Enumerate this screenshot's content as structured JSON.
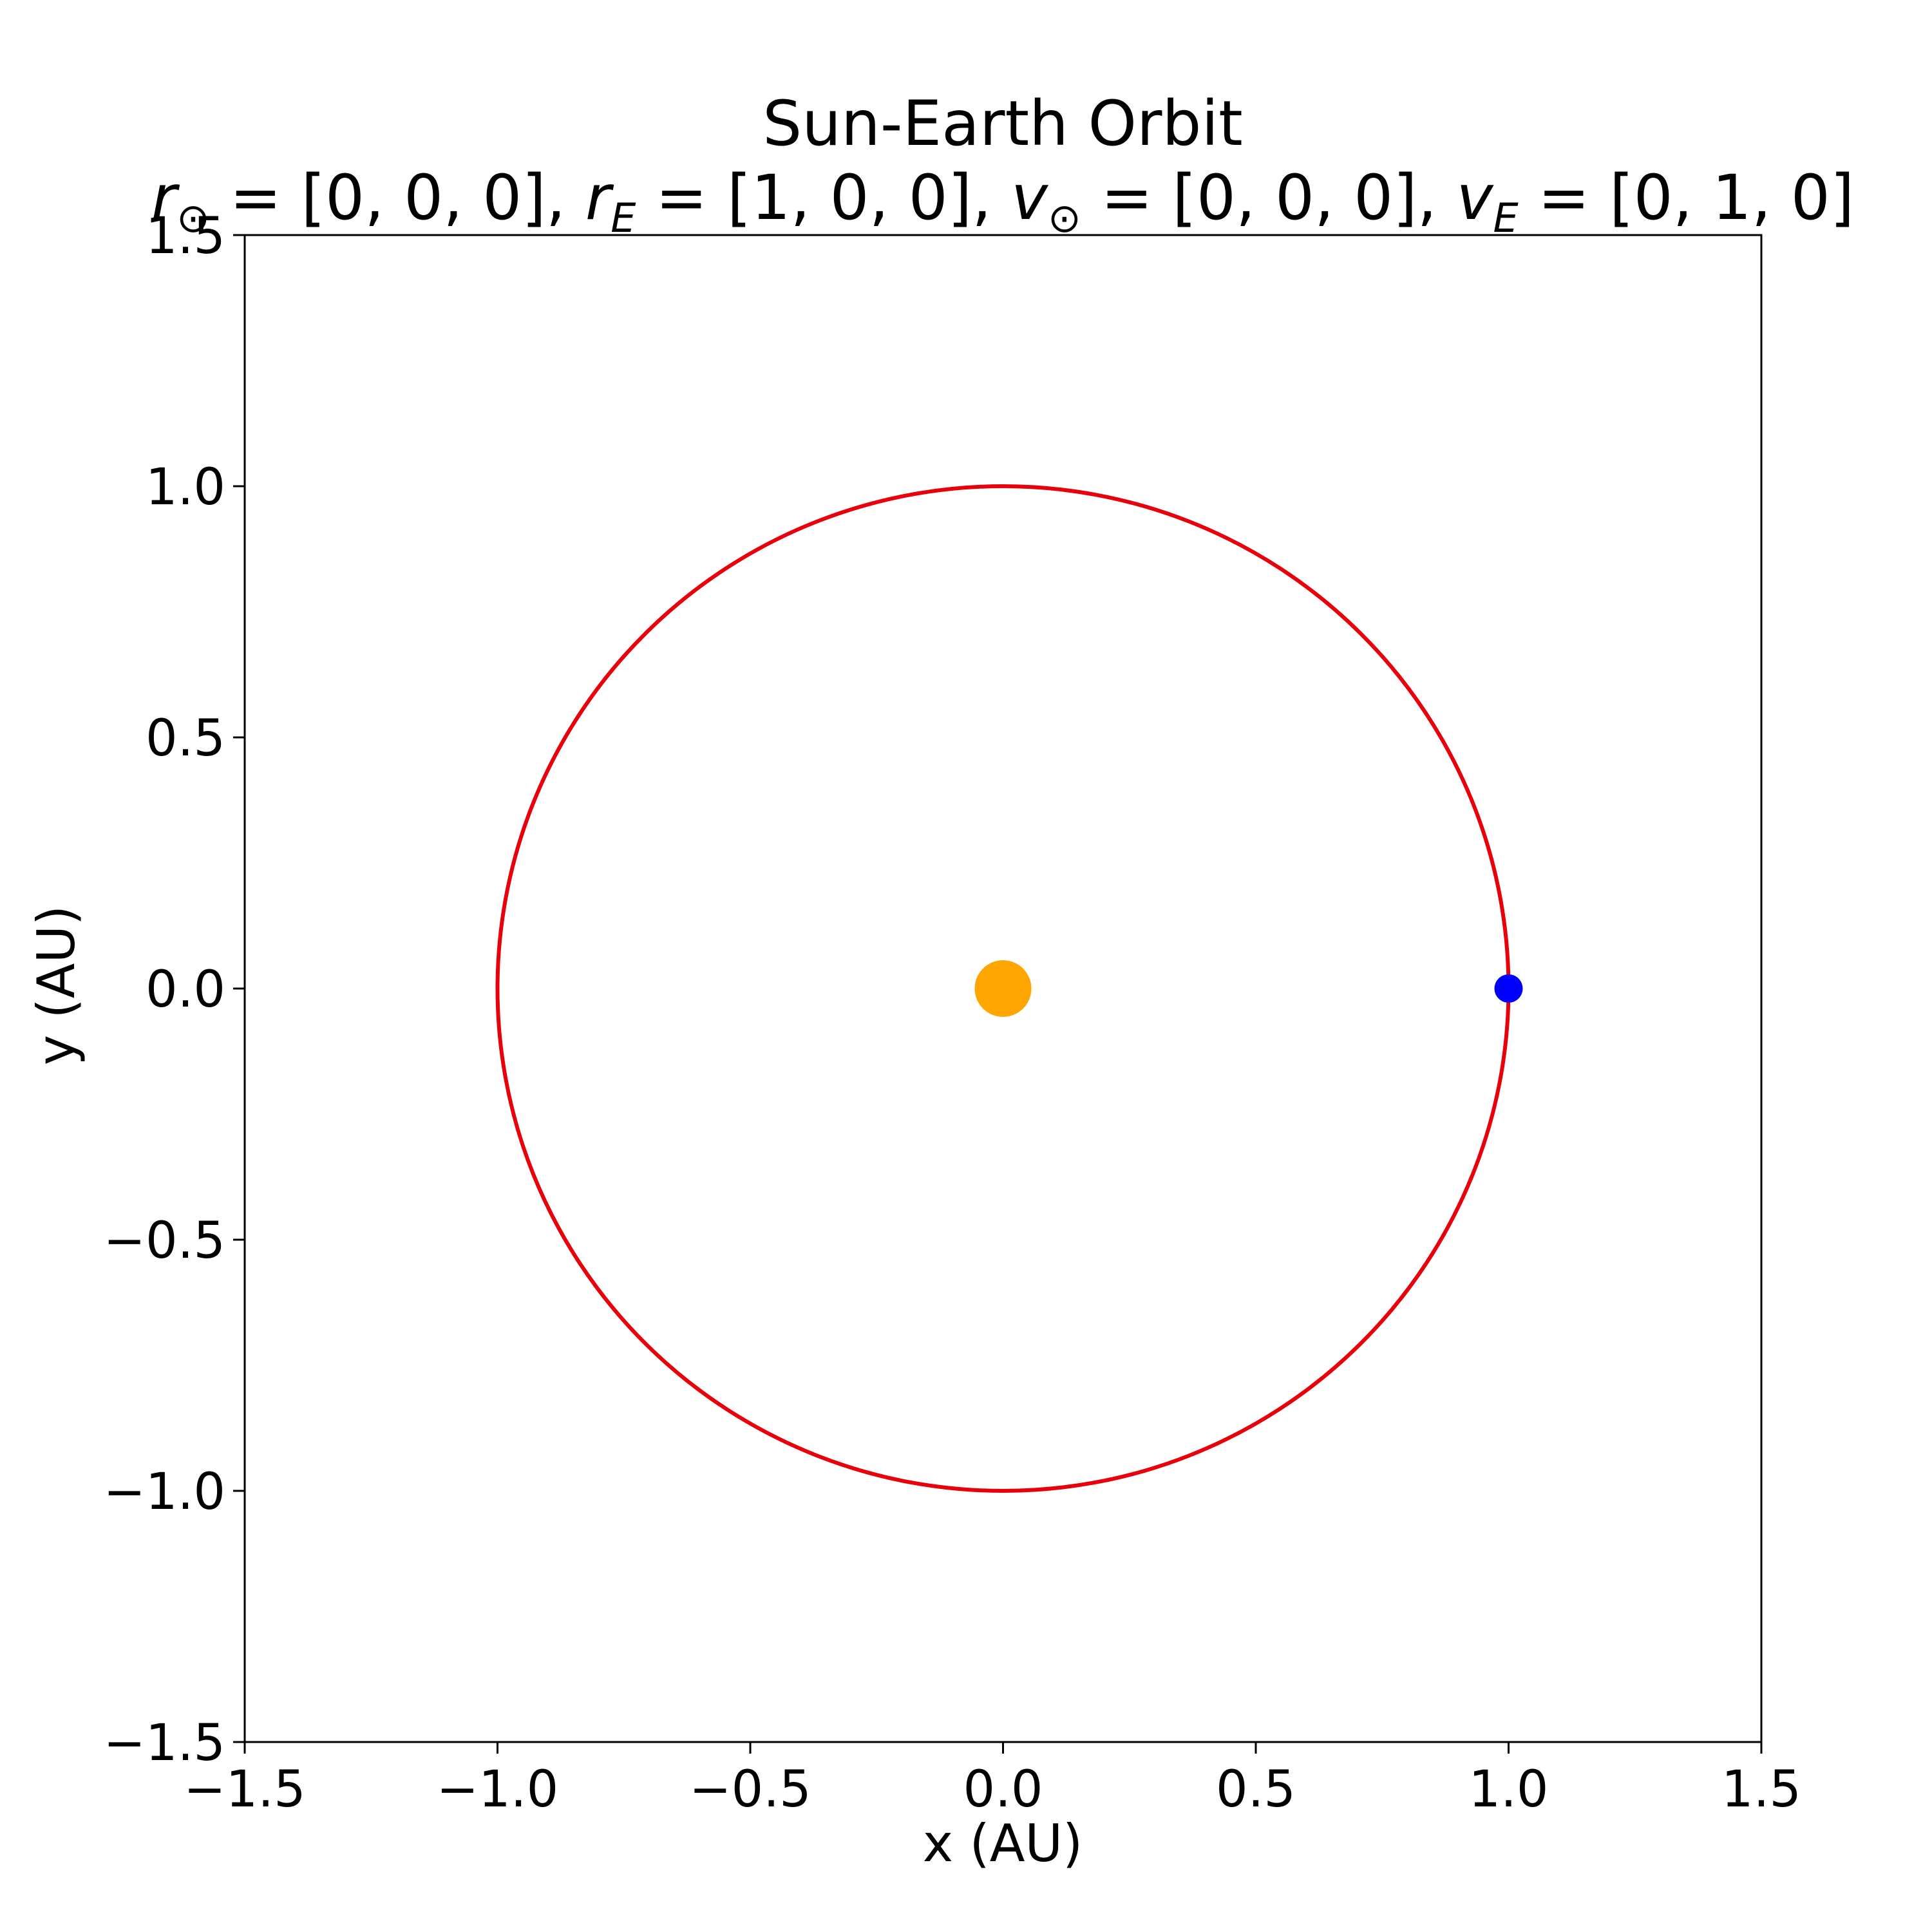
{
  "chart_data": {
    "type": "scatter",
    "title": "Sun-Earth Orbit",
    "subtitle_parts": [
      {
        "var": "r",
        "sub": "⊙",
        "value": "[0, 0, 0]"
      },
      {
        "var": "r",
        "sub": "E",
        "value": "[1, 0, 0]"
      },
      {
        "var": "v",
        "sub": "⊙",
        "value": "[0, 0, 0]"
      },
      {
        "var": "v",
        "sub": "E",
        "value": "[0, 1, 0]"
      }
    ],
    "xlabel": "x (AU)",
    "ylabel": "y (AU)",
    "xlim": [
      -1.5,
      1.5
    ],
    "ylim": [
      -1.5,
      1.5
    ],
    "xticks": [
      -1.5,
      -1.0,
      -0.5,
      0.0,
      0.5,
      1.0,
      1.5
    ],
    "yticks": [
      -1.5,
      -1.0,
      -0.5,
      0.0,
      0.5,
      1.0,
      1.5
    ],
    "xtick_labels": [
      "−1.5",
      "−1.0",
      "−0.5",
      "0.0",
      "0.5",
      "1.0",
      "1.5"
    ],
    "ytick_labels": [
      "−1.5",
      "−1.0",
      "−0.5",
      "0.0",
      "0.5",
      "1.0",
      "1.5"
    ],
    "grid": false,
    "orbit": {
      "center": [
        0,
        0
      ],
      "radius": 1.0,
      "color": "#e8000b"
    },
    "bodies": [
      {
        "x": 0.0,
        "y": 0.0,
        "color": "#ffa500"
      },
      {
        "x": 1.0,
        "y": 0.0,
        "color": "#0000ff"
      }
    ]
  }
}
